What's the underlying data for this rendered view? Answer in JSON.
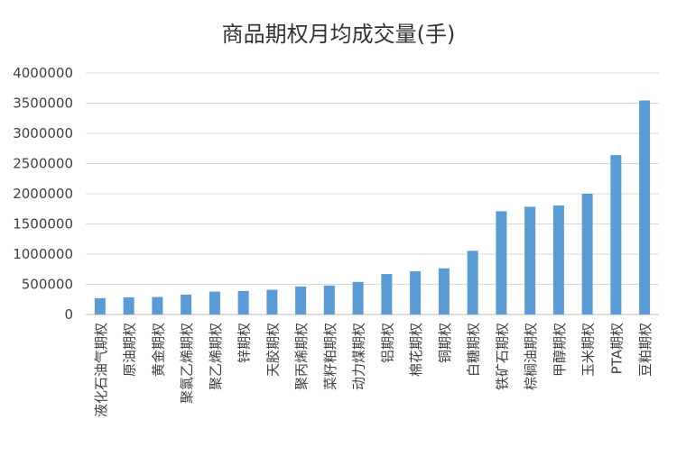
{
  "chart_data": {
    "type": "bar",
    "title": "商品期权月均成交量(手)",
    "xlabel": "",
    "ylabel": "",
    "ylim": [
      0,
      4000000
    ],
    "yticks": [
      0,
      500000,
      1000000,
      1500000,
      2000000,
      2500000,
      3000000,
      3500000,
      4000000
    ],
    "ytick_labels": [
      "0",
      "500000",
      "1000000",
      "1500000",
      "2000000",
      "2500000",
      "3000000",
      "3500000",
      "4000000"
    ],
    "grid": true,
    "bar_color": "#5B9BD5",
    "categories": [
      "液化石油气期权",
      "原油期权",
      "黄金期权",
      "聚氯乙烯期权",
      "聚乙烯期权",
      "锌期权",
      "天胶期权",
      "聚丙烯期权",
      "菜籽粕期权",
      "动力煤期权",
      "铝期权",
      "棉花期权",
      "铜期权",
      "白糖期权",
      "铁矿石期权",
      "棕榈油期权",
      "甲醇期权",
      "玉米期权",
      "PTA期权",
      "豆粕期权"
    ],
    "values": [
      270000,
      285000,
      290000,
      330000,
      380000,
      390000,
      410000,
      465000,
      480000,
      540000,
      670000,
      715000,
      765000,
      1055000,
      1710000,
      1785000,
      1805000,
      2000000,
      2640000,
      3545000
    ]
  }
}
